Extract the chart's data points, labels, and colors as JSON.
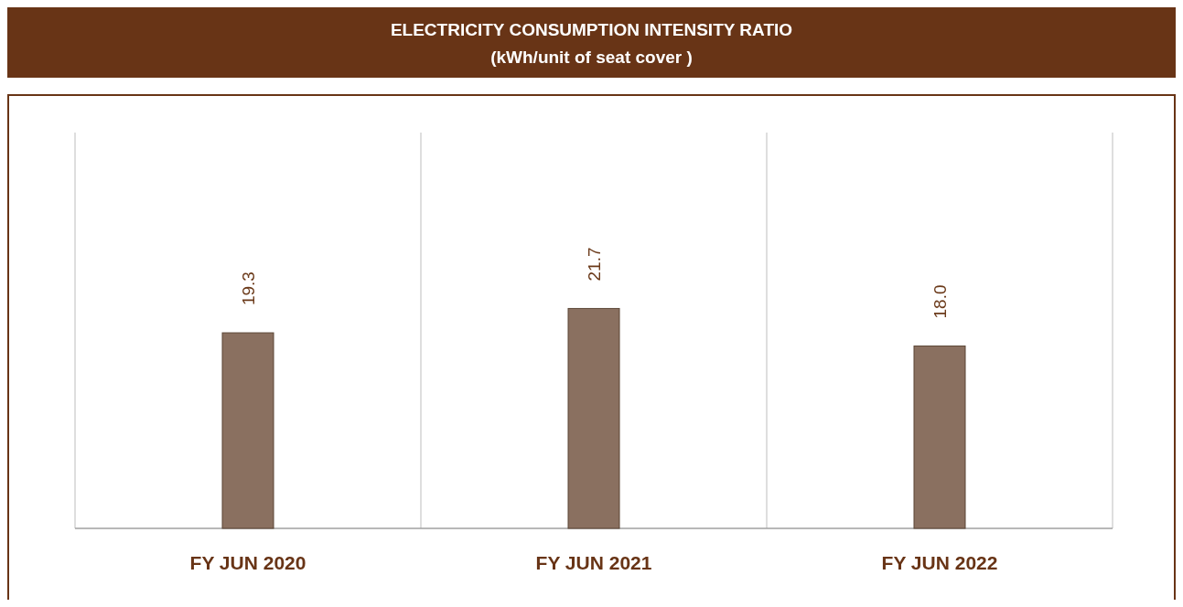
{
  "chart_data": {
    "type": "bar",
    "title": "ELECTRICITY CONSUMPTION INTENSITY RATIO",
    "subtitle": "(kWh/unit of seat cover )",
    "categories": [
      "FY JUN 2020",
      "FY JUN 2021",
      "FY JUN 2022"
    ],
    "values": [
      19.3,
      21.7,
      18.0
    ],
    "value_labels": [
      "19.3",
      "21.7",
      "18.0"
    ],
    "color": "#8a7060",
    "grid": "x"
  }
}
